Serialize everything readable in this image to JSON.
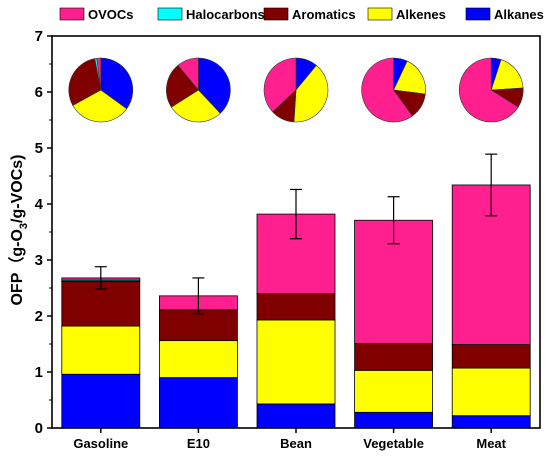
{
  "chart_data": {
    "type": "bar",
    "stacked": true,
    "categories": [
      "Gasoline",
      "E10",
      "Bean",
      "Vegetable",
      "Meat"
    ],
    "ylabel_prefix": "OFP（g-O",
    "ylabel_sub": "3",
    "ylabel_suffix": "/g-VOCs)",
    "ylim": [
      0,
      7
    ],
    "yticks": [
      "0",
      "1",
      "2",
      "3",
      "4",
      "5",
      "6",
      "7"
    ],
    "series": [
      {
        "name": "Alkanes",
        "color": "#0000ff",
        "values": [
          0.96,
          0.9,
          0.43,
          0.28,
          0.22
        ]
      },
      {
        "name": "Alkenes",
        "color": "#ffff00",
        "values": [
          0.86,
          0.66,
          1.5,
          0.75,
          0.85
        ]
      },
      {
        "name": "Aromatics",
        "color": "#800000",
        "values": [
          0.8,
          0.55,
          0.47,
          0.48,
          0.42
        ]
      },
      {
        "name": "Halocarbons",
        "color": "#00ffff",
        "values": [
          0.02,
          0.0,
          0.0,
          0.0,
          0.0
        ]
      },
      {
        "name": "OVOCs",
        "color": "#ff1f8e",
        "values": [
          0.04,
          0.25,
          1.42,
          2.2,
          2.85
        ]
      }
    ],
    "totals": [
      2.68,
      2.36,
      3.82,
      3.71,
      4.34
    ],
    "errors": [
      0.2,
      0.32,
      0.44,
      0.42,
      0.55
    ],
    "pies": [
      {
        "category": "Gasoline",
        "OVOCs": 2,
        "Halocarbons": 1,
        "Aromatics": 30,
        "Alkenes": 32,
        "Alkanes": 35
      },
      {
        "category": "E10",
        "OVOCs": 11,
        "Halocarbons": 0,
        "Aromatics": 23,
        "Alkenes": 28,
        "Alkanes": 38
      },
      {
        "category": "Bean",
        "OVOCs": 37,
        "Halocarbons": 0,
        "Aromatics": 12,
        "Alkenes": 40,
        "Alkanes": 11
      },
      {
        "category": "Vegetable",
        "OVOCs": 60,
        "Halocarbons": 0,
        "Aromatics": 13,
        "Alkenes": 20,
        "Alkanes": 7
      },
      {
        "category": "Meat",
        "OVOCs": 66,
        "Halocarbons": 0,
        "Aromatics": 10,
        "Alkenes": 19,
        "Alkanes": 5
      }
    ],
    "legend": {
      "placement": "top",
      "order": [
        "OVOCs",
        "Halocarbons",
        "Aromatics",
        "Alkenes",
        "Alkanes"
      ]
    }
  }
}
